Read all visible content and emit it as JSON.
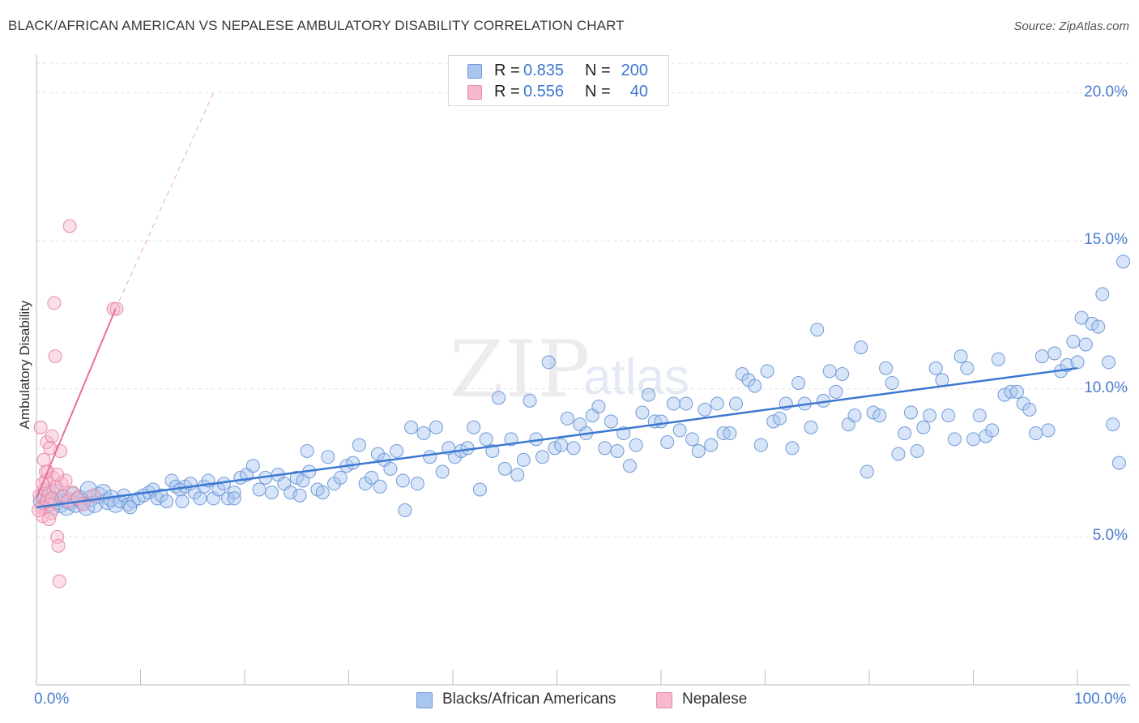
{
  "title": "BLACK/AFRICAN AMERICAN VS NEPALESE AMBULATORY DISABILITY CORRELATION CHART",
  "source": "Source: ZipAtlas.com",
  "watermark": {
    "zip": "ZIP",
    "atlas": "atlas"
  },
  "legend": {
    "rows": [
      {
        "r_label": "R =",
        "r_value": "0.835",
        "n_label": "N =",
        "n_value": "200",
        "color": "#a9c6ef"
      },
      {
        "r_label": "R =",
        "r_value": "0.556",
        "n_label": "N =",
        "n_value": "40",
        "color": "#f6b9cb"
      }
    ]
  },
  "colors": {
    "blue": "#3c78d0",
    "blue_fill": "#a9c6ef",
    "pink": "#e8709a",
    "pink_fill": "#f6b9cb",
    "grid": "#dedede"
  },
  "chart_data": {
    "type": "scatter",
    "title": "BLACK/AFRICAN AMERICAN VS NEPALESE AMBULATORY DISABILITY CORRELATION CHART",
    "xlabel": "",
    "ylabel": "Ambulatory Disability",
    "xlim": [
      0,
      100
    ],
    "ylim": [
      0,
      21
    ],
    "x_tick_labels": [
      "0.0%",
      "100.0%"
    ],
    "y_ticks": [
      5,
      10,
      15,
      20
    ],
    "y_tick_labels": [
      "5.0%",
      "10.0%",
      "15.0%",
      "20.0%"
    ],
    "grid": true,
    "legend_position": "top-center",
    "series": [
      {
        "name": "Blacks/African Americans",
        "R": 0.835,
        "N": 200,
        "trend": {
          "x": [
            0,
            100
          ],
          "y": [
            6.0,
            10.7
          ]
        },
        "points": [
          [
            0.5,
            6.2
          ],
          [
            0.8,
            6.4
          ],
          [
            1.0,
            6.1
          ],
          [
            1.2,
            6.3
          ],
          [
            1.5,
            6.0
          ],
          [
            1.8,
            6.5
          ],
          [
            2.0,
            6.2
          ],
          [
            2.3,
            6.1
          ],
          [
            2.6,
            6.3
          ],
          [
            2.9,
            6.0
          ],
          [
            3.2,
            6.2
          ],
          [
            3.5,
            6.4
          ],
          [
            3.8,
            6.1
          ],
          [
            4.1,
            6.3
          ],
          [
            4.4,
            6.2
          ],
          [
            4.8,
            6.0
          ],
          [
            5.2,
            6.3
          ],
          [
            5.6,
            6.1
          ],
          [
            6.0,
            6.4
          ],
          [
            6.4,
            6.5
          ],
          [
            6.8,
            6.2
          ],
          [
            7.2,
            6.3
          ],
          [
            7.6,
            6.1
          ],
          [
            8.0,
            6.2
          ],
          [
            8.4,
            6.4
          ],
          [
            8.8,
            6.1
          ],
          [
            9.3,
            6.2
          ],
          [
            9.8,
            6.3
          ],
          [
            10.3,
            6.4
          ],
          [
            10.8,
            6.5
          ],
          [
            11.2,
            6.6
          ],
          [
            11.6,
            6.3
          ],
          [
            12.0,
            6.4
          ],
          [
            12.5,
            6.2
          ],
          [
            13.0,
            6.9
          ],
          [
            13.4,
            6.7
          ],
          [
            13.8,
            6.6
          ],
          [
            14.3,
            6.7
          ],
          [
            14.8,
            6.8
          ],
          [
            15.2,
            6.5
          ],
          [
            15.7,
            6.3
          ],
          [
            16.1,
            6.7
          ],
          [
            16.5,
            6.9
          ],
          [
            17.0,
            6.3
          ],
          [
            17.5,
            6.6
          ],
          [
            18.0,
            6.8
          ],
          [
            18.4,
            6.3
          ],
          [
            19.0,
            6.5
          ],
          [
            19.6,
            7.0
          ],
          [
            20.2,
            7.1
          ],
          [
            20.8,
            7.4
          ],
          [
            21.4,
            6.6
          ],
          [
            22.0,
            7.0
          ],
          [
            22.6,
            6.5
          ],
          [
            23.2,
            7.1
          ],
          [
            23.8,
            6.8
          ],
          [
            24.4,
            6.5
          ],
          [
            25.0,
            7.0
          ],
          [
            25.6,
            6.9
          ],
          [
            26.2,
            7.2
          ],
          [
            26.0,
            7.9
          ],
          [
            27.0,
            6.6
          ],
          [
            27.5,
            6.5
          ],
          [
            28.0,
            7.7
          ],
          [
            28.6,
            6.8
          ],
          [
            29.2,
            7.0
          ],
          [
            29.8,
            7.4
          ],
          [
            30.4,
            7.5
          ],
          [
            31.0,
            8.1
          ],
          [
            31.6,
            6.8
          ],
          [
            32.2,
            7.0
          ],
          [
            32.8,
            7.8
          ],
          [
            33.4,
            7.6
          ],
          [
            34.0,
            7.3
          ],
          [
            34.6,
            7.9
          ],
          [
            35.2,
            6.9
          ],
          [
            35.4,
            5.9
          ],
          [
            36.0,
            8.7
          ],
          [
            36.6,
            6.8
          ],
          [
            37.2,
            8.5
          ],
          [
            37.8,
            7.7
          ],
          [
            38.4,
            8.7
          ],
          [
            39.0,
            7.2
          ],
          [
            39.6,
            8.0
          ],
          [
            40.2,
            7.7
          ],
          [
            40.8,
            7.9
          ],
          [
            41.4,
            8.0
          ],
          [
            42.0,
            8.7
          ],
          [
            42.6,
            6.6
          ],
          [
            43.2,
            8.3
          ],
          [
            43.8,
            7.9
          ],
          [
            44.4,
            9.7
          ],
          [
            45.0,
            7.3
          ],
          [
            45.6,
            8.3
          ],
          [
            46.2,
            7.1
          ],
          [
            46.8,
            7.6
          ],
          [
            47.4,
            9.6
          ],
          [
            48.0,
            8.3
          ],
          [
            48.6,
            7.7
          ],
          [
            49.2,
            10.9
          ],
          [
            49.8,
            8.0
          ],
          [
            50.4,
            8.1
          ],
          [
            51.0,
            9.0
          ],
          [
            51.6,
            8.0
          ],
          [
            52.2,
            8.8
          ],
          [
            52.8,
            8.5
          ],
          [
            53.4,
            9.1
          ],
          [
            54.0,
            9.4
          ],
          [
            54.6,
            8.0
          ],
          [
            55.2,
            8.9
          ],
          [
            55.8,
            7.9
          ],
          [
            56.4,
            8.5
          ],
          [
            57.0,
            7.4
          ],
          [
            57.6,
            8.1
          ],
          [
            58.2,
            9.2
          ],
          [
            58.8,
            9.8
          ],
          [
            59.4,
            8.9
          ],
          [
            60.0,
            8.9
          ],
          [
            60.6,
            8.2
          ],
          [
            61.2,
            9.5
          ],
          [
            61.8,
            8.6
          ],
          [
            62.4,
            9.5
          ],
          [
            63.0,
            8.3
          ],
          [
            63.6,
            7.9
          ],
          [
            64.2,
            9.3
          ],
          [
            64.8,
            8.1
          ],
          [
            65.4,
            9.5
          ],
          [
            66.0,
            8.5
          ],
          [
            66.6,
            8.5
          ],
          [
            67.2,
            9.5
          ],
          [
            67.8,
            10.5
          ],
          [
            68.4,
            10.3
          ],
          [
            69.0,
            10.1
          ],
          [
            69.6,
            8.1
          ],
          [
            70.2,
            10.6
          ],
          [
            70.8,
            8.9
          ],
          [
            71.4,
            9.0
          ],
          [
            72.0,
            9.5
          ],
          [
            72.6,
            8.0
          ],
          [
            73.2,
            10.2
          ],
          [
            73.8,
            9.5
          ],
          [
            74.4,
            8.7
          ],
          [
            75.0,
            12.0
          ],
          [
            75.6,
            9.6
          ],
          [
            76.2,
            10.6
          ],
          [
            76.8,
            9.9
          ],
          [
            77.4,
            10.5
          ],
          [
            78.0,
            8.8
          ],
          [
            78.6,
            9.1
          ],
          [
            79.2,
            11.4
          ],
          [
            79.8,
            7.2
          ],
          [
            80.4,
            9.2
          ],
          [
            81.0,
            9.1
          ],
          [
            81.6,
            10.7
          ],
          [
            82.2,
            10.2
          ],
          [
            82.8,
            7.8
          ],
          [
            83.4,
            8.5
          ],
          [
            84.0,
            9.2
          ],
          [
            84.6,
            7.9
          ],
          [
            85.2,
            8.7
          ],
          [
            85.8,
            9.1
          ],
          [
            86.4,
            10.7
          ],
          [
            87.0,
            10.3
          ],
          [
            87.6,
            9.1
          ],
          [
            88.2,
            8.3
          ],
          [
            88.8,
            11.1
          ],
          [
            89.4,
            10.7
          ],
          [
            90.0,
            8.3
          ],
          [
            90.6,
            9.1
          ],
          [
            91.2,
            8.4
          ],
          [
            91.8,
            8.6
          ],
          [
            92.4,
            11.0
          ],
          [
            93.0,
            9.8
          ],
          [
            93.6,
            9.9
          ],
          [
            94.2,
            9.9
          ],
          [
            94.8,
            9.5
          ],
          [
            95.4,
            9.3
          ],
          [
            96.0,
            8.5
          ],
          [
            96.6,
            11.1
          ],
          [
            97.2,
            8.6
          ],
          [
            97.8,
            11.2
          ],
          [
            98.4,
            10.6
          ],
          [
            99.0,
            10.8
          ],
          [
            99.6,
            11.6
          ],
          [
            100.0,
            10.9
          ],
          [
            100.4,
            12.4
          ],
          [
            100.8,
            11.5
          ],
          [
            101.4,
            12.2
          ],
          [
            102.0,
            12.1
          ],
          [
            102.4,
            13.2
          ],
          [
            103.0,
            10.9
          ],
          [
            103.4,
            8.8
          ],
          [
            104.0,
            7.5
          ],
          [
            104.4,
            14.3
          ],
          [
            19.0,
            6.3
          ],
          [
            25.3,
            6.4
          ],
          [
            33.0,
            6.7
          ],
          [
            14.0,
            6.2
          ],
          [
            9.0,
            6.0
          ],
          [
            5.0,
            6.6
          ]
        ]
      },
      {
        "name": "Nepalese",
        "R": 0.556,
        "N": 40,
        "trend": {
          "x": [
            0,
            7.6
          ],
          "y": [
            6.3,
            12.7
          ]
        },
        "trend_extended": {
          "x": [
            7.6,
            17.0
          ],
          "y": [
            12.7,
            20.0
          ]
        },
        "points": [
          [
            0.3,
            6.4
          ],
          [
            0.5,
            6.0
          ],
          [
            0.6,
            5.7
          ],
          [
            0.7,
            7.6
          ],
          [
            0.8,
            6.6
          ],
          [
            0.9,
            6.9
          ],
          [
            1.0,
            6.2
          ],
          [
            1.0,
            8.2
          ],
          [
            1.1,
            7.2
          ],
          [
            1.2,
            6.5
          ],
          [
            1.3,
            6.1
          ],
          [
            1.4,
            5.8
          ],
          [
            1.5,
            6.3
          ],
          [
            1.5,
            8.4
          ],
          [
            1.6,
            7.0
          ],
          [
            1.7,
            12.9
          ],
          [
            1.8,
            11.1
          ],
          [
            1.9,
            6.7
          ],
          [
            2.0,
            5.0
          ],
          [
            2.1,
            4.7
          ],
          [
            2.2,
            3.5
          ],
          [
            2.3,
            7.9
          ],
          [
            2.4,
            6.8
          ],
          [
            2.6,
            6.4
          ],
          [
            2.8,
            6.9
          ],
          [
            3.0,
            6.2
          ],
          [
            3.2,
            15.5
          ],
          [
            3.5,
            6.5
          ],
          [
            4.0,
            6.3
          ],
          [
            4.5,
            6.1
          ],
          [
            0.4,
            8.7
          ],
          [
            0.9,
            7.2
          ],
          [
            1.3,
            8.0
          ],
          [
            0.6,
            6.8
          ],
          [
            1.2,
            5.6
          ],
          [
            2.0,
            7.1
          ],
          [
            5.5,
            6.4
          ],
          [
            7.4,
            12.7
          ],
          [
            7.7,
            12.7
          ],
          [
            0.2,
            5.9
          ]
        ]
      }
    ]
  },
  "bottom_legend": [
    "Blacks/African Americans",
    "Nepalese"
  ]
}
